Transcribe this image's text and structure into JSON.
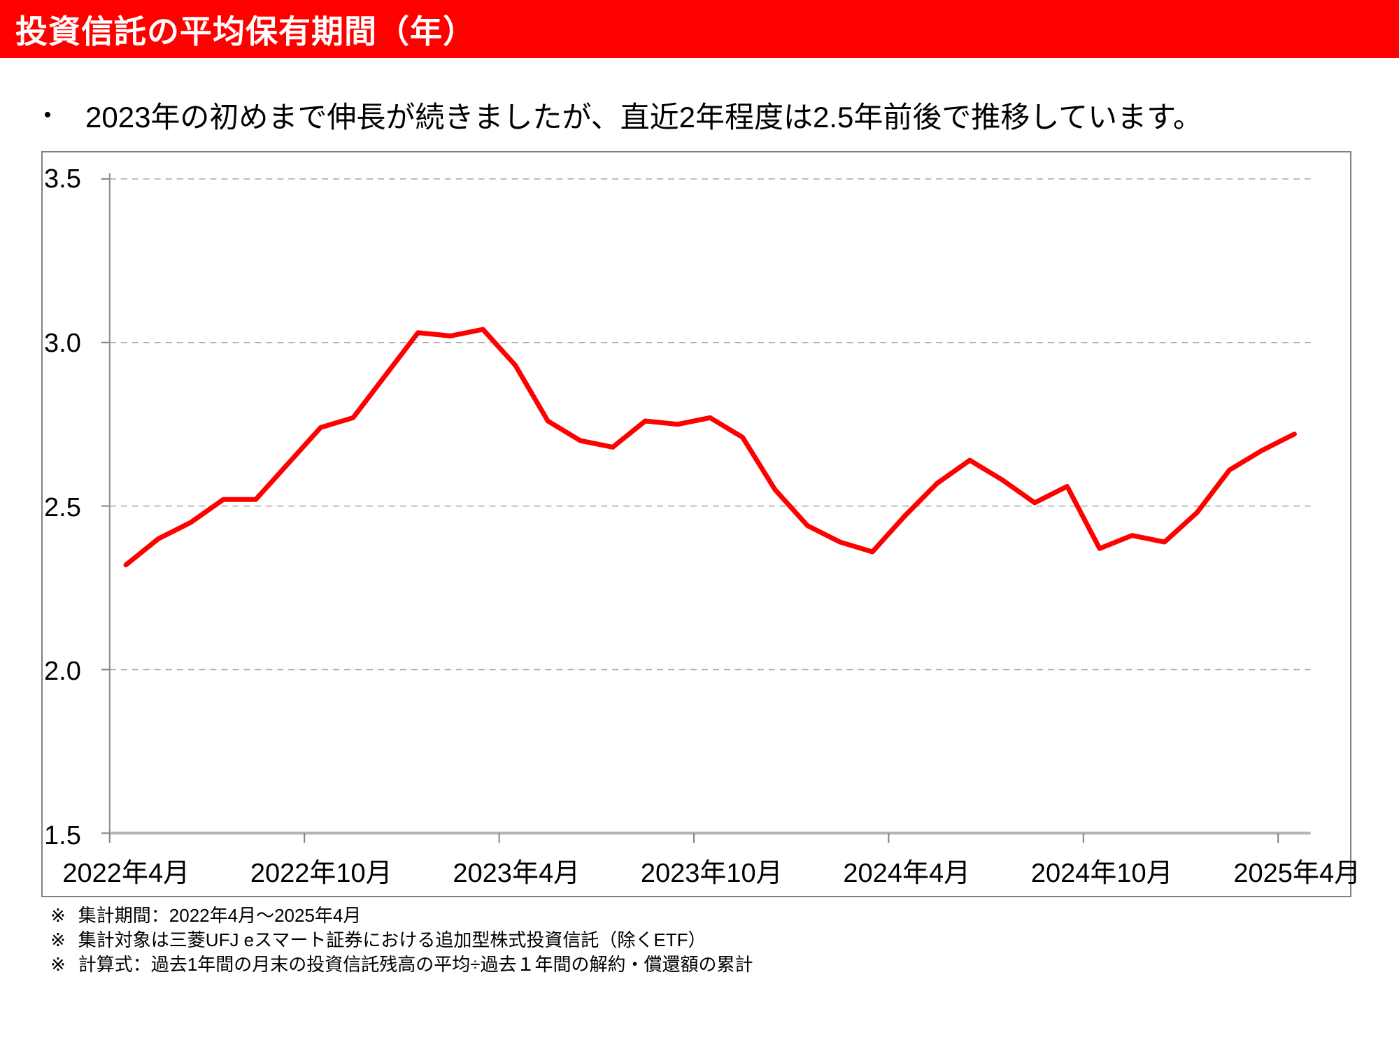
{
  "header": {
    "title": "投資信託の平均保有期間（年）",
    "bg_color": "#ff0000",
    "text_color": "#ffffff"
  },
  "summary": {
    "bullet": "•",
    "text": "2023年の初めまで伸長が続きましたが、直近2年程度は2.5年前後で推移しています。"
  },
  "chart_data": {
    "type": "line",
    "title": "投資信託の平均保有期間（年）",
    "x": [
      "2022年4月",
      "2022年5月",
      "2022年6月",
      "2022年7月",
      "2022年8月",
      "2022年9月",
      "2022年10月",
      "2022年11月",
      "2022年12月",
      "2023年1月",
      "2023年2月",
      "2023年3月",
      "2023年4月",
      "2023年5月",
      "2023年6月",
      "2023年7月",
      "2023年8月",
      "2023年9月",
      "2023年10月",
      "2023年11月",
      "2023年12月",
      "2024年1月",
      "2024年2月",
      "2024年3月",
      "2024年4月",
      "2024年5月",
      "2024年6月",
      "2024年7月",
      "2024年8月",
      "2024年9月",
      "2024年10月",
      "2024年11月",
      "2024年12月",
      "2025年1月",
      "2025年2月",
      "2025年3月",
      "2025年4月"
    ],
    "series": [
      {
        "name": "平均保有期間（年）",
        "color": "#ff0000",
        "values": [
          2.32,
          2.4,
          2.45,
          2.52,
          2.52,
          2.63,
          2.74,
          2.77,
          2.9,
          3.03,
          3.02,
          3.04,
          2.93,
          2.76,
          2.7,
          2.68,
          2.76,
          2.75,
          2.77,
          2.71,
          2.55,
          2.44,
          2.39,
          2.36,
          2.47,
          2.57,
          2.64,
          2.58,
          2.51,
          2.56,
          2.37,
          2.41,
          2.39,
          2.48,
          2.61,
          2.67,
          2.72
        ]
      }
    ],
    "xticks": [
      "2022年4月",
      "2022年10月",
      "2023年4月",
      "2023年10月",
      "2024年4月",
      "2024年10月",
      "2025年4月"
    ],
    "yticks": [
      3.5,
      3.0,
      2.5,
      2.0,
      1.5
    ],
    "ylim": [
      1.5,
      3.5
    ],
    "xlabel": "",
    "ylabel": "",
    "grid": "dashed-horizontal",
    "legend": "none",
    "grid_color": "#a6a6a6",
    "axis_color": "#b3b3b3"
  },
  "footnotes": {
    "marker": "※",
    "lines": [
      "集計期間：2022年4月～2025年4月",
      "集計対象は三菱UFJ eスマート証券における追加型株式投資信託（除くETF）",
      "計算式：過去1年間の月末の投資信託残高の平均÷過去１年間の解約・償還額の累計"
    ]
  }
}
